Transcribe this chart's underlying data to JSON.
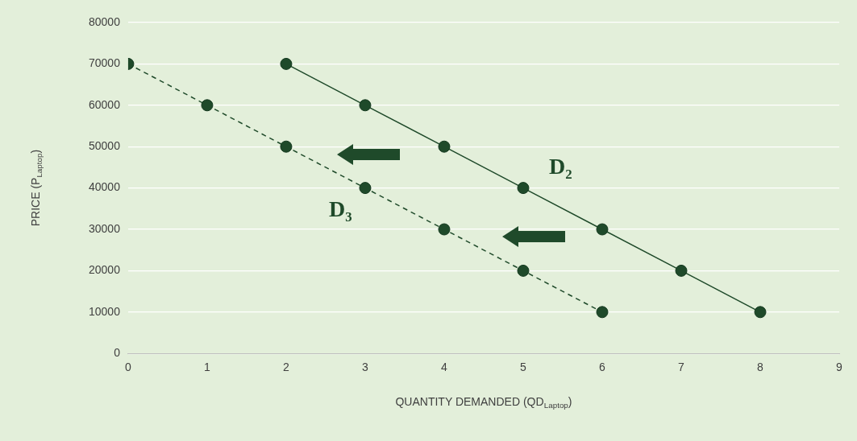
{
  "chart_data": {
    "type": "line",
    "xlabel": "QUANTITY DEMANDED (QD$_{Laptop}$)",
    "ylabel": "PRICE (P$_{Laptop}$)",
    "xlim": [
      0,
      9
    ],
    "xticks": [
      0,
      1,
      2,
      3,
      4,
      5,
      6,
      7,
      8,
      9
    ],
    "ylim": [
      0,
      80000
    ],
    "yticks": [
      0,
      10000,
      20000,
      30000,
      40000,
      50000,
      60000,
      70000,
      80000
    ],
    "grid": "y",
    "legend": false,
    "marker": "circle",
    "series": [
      {
        "name": "D₂",
        "color": "#1f4a2a",
        "line_style": "solid",
        "x": [
          2,
          3,
          4,
          5,
          6,
          7,
          8
        ],
        "values": [
          70000,
          60000,
          50000,
          40000,
          30000,
          20000,
          10000
        ]
      },
      {
        "name": "D₃",
        "color": "#1f4a2a",
        "line_style": "dashed",
        "x": [
          0,
          1,
          2,
          3,
          4,
          5,
          6
        ],
        "values": [
          70000,
          60000,
          50000,
          40000,
          30000,
          20000,
          10000
        ]
      }
    ]
  }
}
